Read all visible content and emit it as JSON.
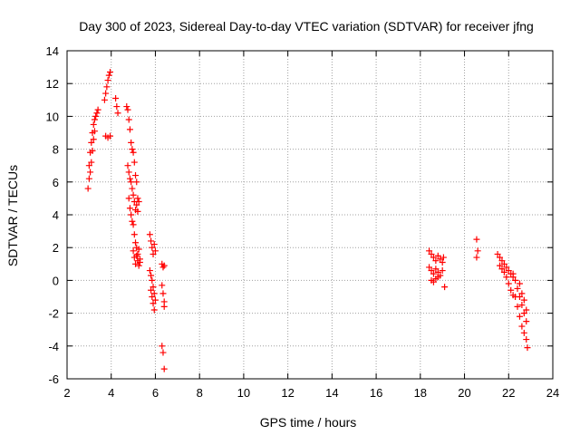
{
  "chart_data": {
    "type": "scatter",
    "title": "Day 300 of 2023, Sidereal Day-to-day VTEC variation (SDTVAR) for receiver jfng",
    "xlabel": "GPS time / hours",
    "ylabel": "SDTVAR / TECUs",
    "xlim": [
      2,
      24
    ],
    "ylim": [
      -6,
      14
    ],
    "xticks": [
      2,
      4,
      6,
      8,
      10,
      12,
      14,
      16,
      18,
      20,
      22,
      24
    ],
    "yticks": [
      -6,
      -4,
      -2,
      0,
      2,
      4,
      6,
      8,
      10,
      12,
      14
    ],
    "grid": true,
    "marker": "+",
    "color": "#ff0000",
    "series": [
      {
        "name": "SDTVAR",
        "x": [
          2.95,
          3.0,
          3.05,
          3.1,
          3.15,
          3.2,
          3.25,
          3.3,
          3.35,
          3.4,
          3.0,
          3.05,
          3.1,
          3.15,
          3.2,
          3.25,
          3.7,
          3.75,
          3.8,
          3.85,
          3.9,
          3.95,
          3.75,
          3.85,
          3.95,
          4.2,
          4.25,
          4.3,
          4.7,
          4.75,
          4.8,
          4.85,
          4.9,
          4.95,
          5.0,
          5.05,
          5.1,
          5.15,
          5.2,
          4.75,
          4.8,
          4.85,
          4.9,
          4.95,
          5.0,
          5.05,
          5.1,
          5.15,
          5.2,
          5.25,
          4.8,
          4.85,
          4.9,
          4.95,
          5.0,
          5.05,
          5.1,
          5.15,
          5.2,
          5.25,
          5.3,
          5.0,
          5.05,
          5.1,
          5.15,
          5.2,
          5.25,
          5.3,
          5.75,
          5.8,
          5.85,
          5.9,
          5.95,
          6.0,
          5.75,
          5.8,
          5.85,
          5.9,
          5.95,
          5.8,
          5.85,
          5.9,
          5.95,
          6.0,
          6.3,
          6.35,
          6.4,
          6.3,
          6.35,
          6.4,
          6.4,
          6.3,
          6.35,
          6.4,
          18.4,
          18.5,
          18.6,
          18.7,
          18.8,
          18.9,
          19.0,
          19.05,
          18.4,
          18.5,
          18.6,
          18.7,
          18.8,
          18.9,
          19.0,
          18.5,
          18.6,
          18.7,
          18.8,
          19.1,
          20.55,
          20.55,
          20.6,
          21.5,
          21.6,
          21.7,
          21.8,
          21.9,
          22.0,
          22.1,
          22.2,
          21.6,
          21.7,
          21.8,
          21.9,
          22.0,
          22.1,
          22.2,
          22.2,
          22.3,
          22.4,
          22.5,
          22.6,
          22.7,
          22.8,
          22.3,
          22.4,
          22.5,
          22.6,
          22.7,
          22.8,
          22.85,
          22.5,
          22.6,
          22.7,
          22.8
        ],
        "y": [
          5.6,
          7.0,
          7.8,
          8.4,
          9.0,
          9.5,
          9.8,
          10.0,
          10.2,
          10.4,
          6.2,
          6.6,
          7.2,
          7.9,
          8.6,
          9.1,
          11.0,
          11.4,
          11.8,
          12.2,
          12.5,
          12.7,
          8.8,
          8.7,
          8.8,
          11.1,
          10.6,
          10.2,
          10.6,
          10.4,
          9.8,
          9.2,
          8.4,
          8.0,
          7.8,
          7.2,
          6.4,
          6.0,
          5.0,
          7.0,
          6.6,
          6.2,
          6.0,
          5.6,
          5.2,
          4.8,
          4.3,
          4.6,
          4.2,
          4.8,
          5.0,
          4.4,
          4.0,
          3.6,
          3.4,
          2.8,
          2.3,
          2.0,
          1.6,
          1.9,
          1.3,
          1.8,
          1.4,
          1.0,
          1.5,
          1.2,
          0.9,
          1.1,
          2.8,
          2.4,
          2.0,
          1.6,
          2.2,
          1.8,
          0.6,
          0.3,
          0.0,
          -0.4,
          -0.8,
          -0.6,
          -1.0,
          -1.4,
          -1.8,
          -1.2,
          1.0,
          0.8,
          0.9,
          -0.3,
          -0.8,
          -1.3,
          -1.6,
          -4.0,
          -4.4,
          -5.4,
          1.8,
          1.6,
          1.4,
          1.2,
          1.5,
          1.3,
          1.1,
          1.4,
          0.8,
          0.6,
          0.4,
          0.7,
          0.5,
          0.3,
          0.6,
          0.0,
          -0.1,
          0.1,
          0.2,
          -0.4,
          2.5,
          1.4,
          1.8,
          1.6,
          1.4,
          1.2,
          1.0,
          0.8,
          0.6,
          0.4,
          0.2,
          0.9,
          0.7,
          0.5,
          0.2,
          -0.2,
          -0.6,
          -0.9,
          0.4,
          0.0,
          -0.5,
          -1.0,
          -1.5,
          -1.2,
          -1.8,
          -1.0,
          -1.6,
          -2.2,
          -2.8,
          -3.2,
          -3.6,
          -4.1,
          -0.2,
          -0.8,
          -2.0,
          -2.5
        ]
      }
    ]
  }
}
